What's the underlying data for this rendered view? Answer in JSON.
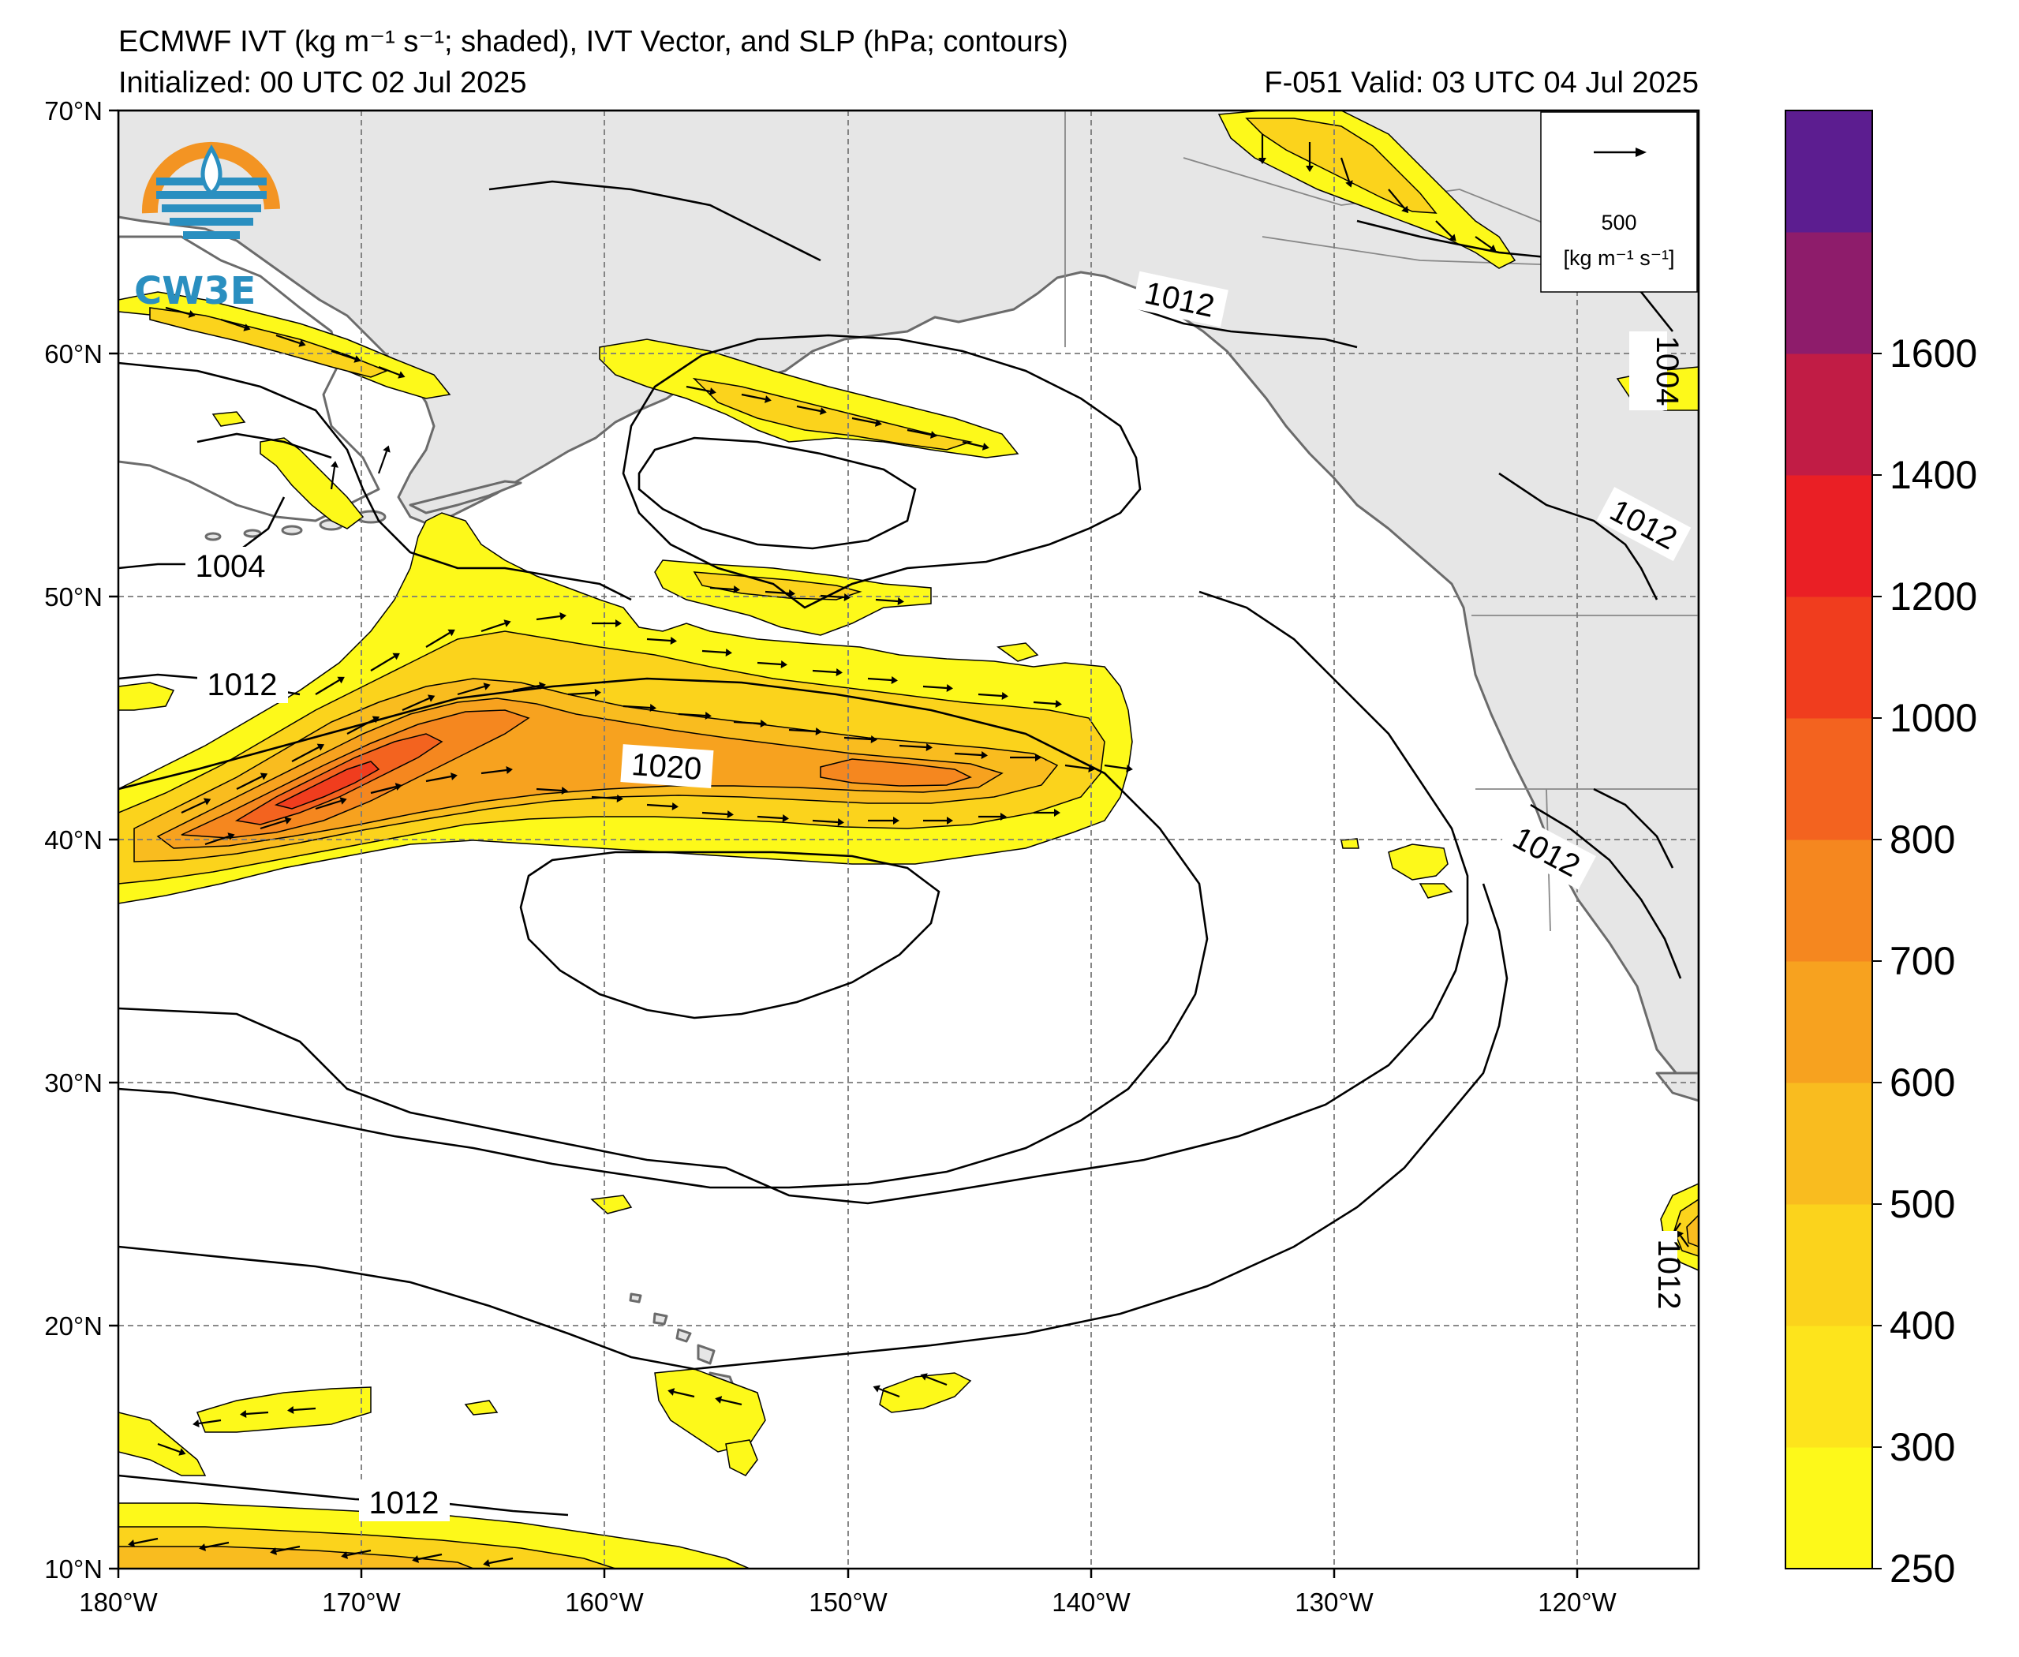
{
  "title": {
    "line1": "ECMWF IVT (kg m⁻¹ s⁻¹; shaded), IVT Vector, and SLP (hPa; contours)",
    "line2_left": "Initialized: 00 UTC 02 Jul 2025",
    "line2_right": "F-051  Valid: 03 UTC 04 Jul 2025"
  },
  "logo": {
    "text": "CW3E"
  },
  "map": {
    "lon_range": [
      -180,
      -115
    ],
    "lat_range": [
      10,
      70
    ],
    "land_color": "#e6e6e6",
    "coast_color": "#6b6b6b",
    "grid": "dashed",
    "lat_ticks": [
      "10°N",
      "20°N",
      "30°N",
      "40°N",
      "50°N",
      "60°N",
      "70°N"
    ],
    "lon_ticks": [
      "180°W",
      "170°W",
      "160°W",
      "150°W",
      "140°W",
      "130°W",
      "120°W"
    ],
    "slp_labels": [
      "1012",
      "1004",
      "1012",
      "1004",
      "1012",
      "1020",
      "1012",
      "1012",
      "1012"
    ]
  },
  "vector_key": {
    "value": "500",
    "units": "[kg m⁻¹ s⁻¹]"
  },
  "colorbar": {
    "levels": [
      250,
      300,
      400,
      500,
      600,
      700,
      800,
      1000,
      1200,
      1400,
      1600,
      1800
    ],
    "tick_labels": [
      "250",
      "300",
      "400",
      "500",
      "600",
      "700",
      "800",
      "1000",
      "1200",
      "1400",
      "1600"
    ],
    "colors": [
      "#fdf91a",
      "#fde41c",
      "#fbd31c",
      "#f9bc1f",
      "#f7a21f",
      "#f5871f",
      "#f3631f",
      "#f03d1e",
      "#ea1f25",
      "#c11c45",
      "#8e1c6b",
      "#5c1d90"
    ]
  }
}
